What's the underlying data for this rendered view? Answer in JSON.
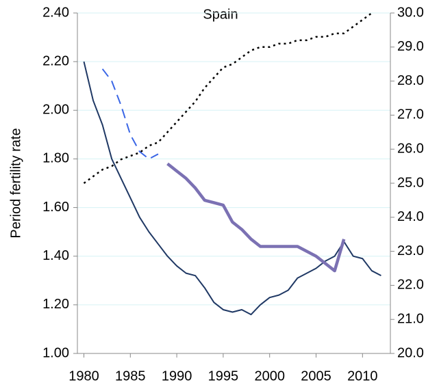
{
  "chart_data": {
    "type": "line",
    "title": "Spain",
    "ylabel": "Period fertility rate",
    "xlim": [
      1979.3,
      2013
    ],
    "xticks": [
      1980,
      1985,
      1990,
      1995,
      2000,
      2005,
      2010
    ],
    "ylim": [
      1,
      2.4
    ],
    "yticks": [
      {
        "value": 1,
        "label": "1.00"
      },
      {
        "value": 1.2,
        "label": "1.20"
      },
      {
        "value": 1.4,
        "label": "1.40"
      },
      {
        "value": 1.6,
        "label": "1.60"
      },
      {
        "value": 1.8,
        "label": "1.80"
      },
      {
        "value": 2,
        "label": "2.00"
      },
      {
        "value": 2.2,
        "label": "2.20"
      },
      {
        "value": 2.4,
        "label": "2.40"
      }
    ],
    "y2lim": [
      20,
      30
    ],
    "y2ticks": [
      {
        "value": 20,
        "label": "20.0"
      },
      {
        "value": 21,
        "label": "21.0"
      },
      {
        "value": 22,
        "label": "22.0"
      },
      {
        "value": 23,
        "label": "23.0"
      },
      {
        "value": 24,
        "label": "24.0"
      },
      {
        "value": 25,
        "label": "25.0"
      },
      {
        "value": 26,
        "label": "26.0"
      },
      {
        "value": 27,
        "label": "27.0"
      },
      {
        "value": 28,
        "label": "28.0"
      },
      {
        "value": 29,
        "label": "29.0"
      },
      {
        "value": 30,
        "label": "30.0"
      }
    ],
    "grid": true,
    "series": [
      {
        "color": "#1f3864",
        "width": 2,
        "dash": "none",
        "x": [
          1980,
          1981,
          1982,
          1983,
          1984,
          1985,
          1986,
          1987,
          1988,
          1989,
          1990,
          1991,
          1992,
          1993,
          1994,
          1995,
          1996,
          1997,
          1998,
          1999,
          2000,
          2001,
          2002,
          2003,
          2004,
          2005,
          2006,
          2007,
          2008,
          2009,
          2010,
          2011,
          2012
        ],
        "values": [
          2.2,
          2.04,
          1.94,
          1.8,
          1.72,
          1.64,
          1.56,
          1.5,
          1.45,
          1.4,
          1.36,
          1.33,
          1.32,
          1.27,
          1.21,
          1.18,
          1.17,
          1.18,
          1.16,
          1.2,
          1.23,
          1.24,
          1.26,
          1.31,
          1.33,
          1.35,
          1.38,
          1.4,
          1.46,
          1.4,
          1.39,
          1.34,
          1.32
        ]
      },
      {
        "color": "#3a66e6",
        "width": 2,
        "dash": "14,8",
        "x": [
          1982,
          1983,
          1984,
          1985,
          1986,
          1987,
          1988
        ],
        "values": [
          2.17,
          2.12,
          2.02,
          1.9,
          1.83,
          1.8,
          1.82
        ]
      },
      {
        "color": "#7b71b3",
        "width": 4.5,
        "dash": "none",
        "x": [
          1989,
          1990,
          1991,
          1992,
          1993,
          1994,
          1995,
          1996,
          1997,
          1998,
          1999,
          2000,
          2001,
          2002,
          2003,
          2004,
          2005,
          2006,
          2007,
          2008
        ],
        "values": [
          1.78,
          1.75,
          1.72,
          1.68,
          1.63,
          1.62,
          1.61,
          1.54,
          1.51,
          1.47,
          1.44,
          1.44,
          1.44,
          1.44,
          1.44,
          1.42,
          1.4,
          1.37,
          1.34,
          1.47
        ]
      },
      {
        "color": "#000000",
        "width": 2.5,
        "dash": "3,5",
        "axis": "y2",
        "x": [
          1980,
          1981,
          1982,
          1983,
          1984,
          1985,
          1986,
          1987,
          1988,
          1989,
          1990,
          1991,
          1992,
          1993,
          1994,
          1995,
          1996,
          1997,
          1998,
          1999,
          2000,
          2001,
          2002,
          2003,
          2004,
          2005,
          2006,
          2007,
          2008,
          2009,
          2010,
          2011
        ],
        "values": [
          25.0,
          25.2,
          25.4,
          25.5,
          25.7,
          25.8,
          25.9,
          26.1,
          26.2,
          26.5,
          26.8,
          27.1,
          27.4,
          27.8,
          28.1,
          28.4,
          28.5,
          28.7,
          28.9,
          29.0,
          29.0,
          29.1,
          29.1,
          29.2,
          29.2,
          29.3,
          29.3,
          29.4,
          29.4,
          29.6,
          29.8,
          30.0
        ]
      }
    ]
  }
}
